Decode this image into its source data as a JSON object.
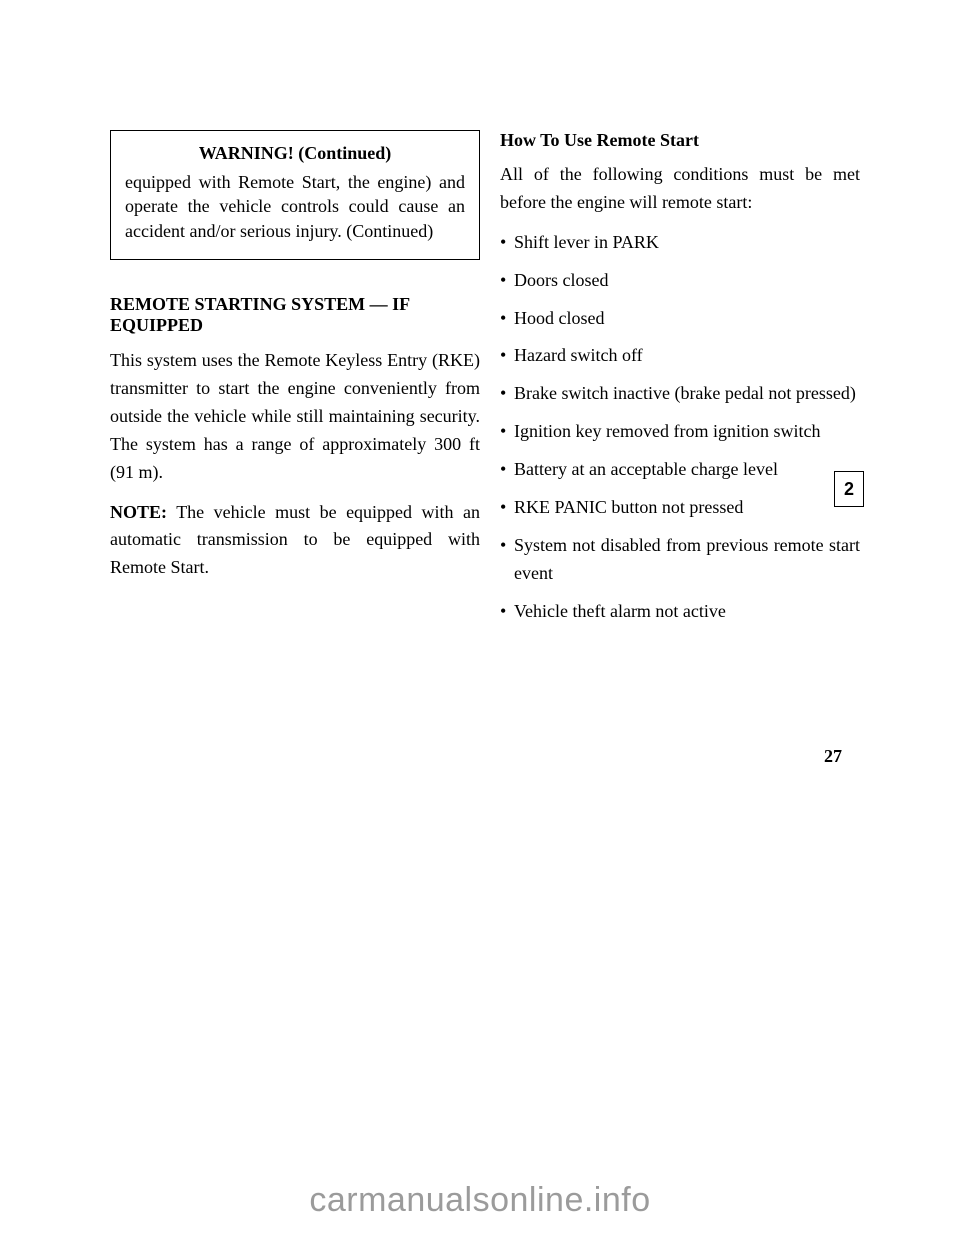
{
  "warning": {
    "label": "WARNING! (Continued)",
    "body": "equipped with Remote Start, the engine) and operate the vehicle controls could cause an accident and/or serious injury. (Continued)"
  },
  "remoteStartHeading": "REMOTE STARTING SYSTEM — IF EQUIPPED",
  "remote": {
    "p1": "This system uses the Remote Keyless Entry (RKE) transmitter to start the engine conveniently from outside the vehicle while still maintaining security. The system has a range of approximately 300 ft (91 m).",
    "noteLabel": "NOTE:",
    "note": "The vehicle must be equipped with an automatic transmission to be equipped with Remote Start."
  },
  "customerHeading": "How To Use Remote Start",
  "general": {
    "intro": "All of the following conditions must be met before the engine will remote start:",
    "items": [
      "Shift lever in PARK",
      "Doors closed",
      "Hood closed",
      "Hazard switch off",
      "Brake switch inactive (brake pedal not pressed)",
      "Ignition key removed from ignition switch",
      "Battery at an acceptable charge level",
      "RKE PANIC button not pressed",
      "System not disabled from previous remote start event",
      "Vehicle theft alarm not active"
    ]
  },
  "pageNumber": "27",
  "tab": "2",
  "watermark": "carmanualsonline.info"
}
